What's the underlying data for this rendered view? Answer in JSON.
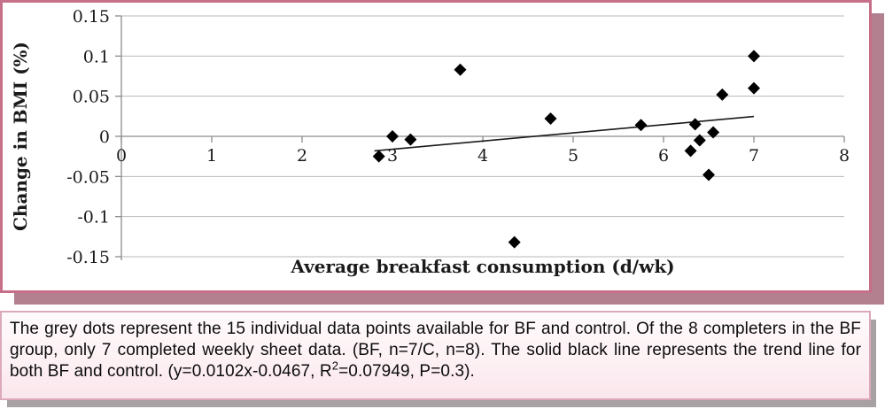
{
  "chart_data": {
    "type": "scatter",
    "title": "",
    "xlabel": "Average breakfast consumption (d/wk)",
    "ylabel": "Change in BMI (%)",
    "xlim": [
      0,
      8
    ],
    "ylim": [
      -0.15,
      0.15
    ],
    "x_ticks": [
      "0",
      "1",
      "2",
      "3",
      "4",
      "5",
      "6",
      "7",
      "8"
    ],
    "x_tick_values": [
      0,
      1,
      2,
      3,
      4,
      5,
      6,
      7,
      8
    ],
    "y_ticks": [
      "0.15",
      "0.1",
      "0.05",
      "0",
      "-0.05",
      "-0.1",
      "-0.15"
    ],
    "y_tick_values": [
      0.15,
      0.1,
      0.05,
      0,
      -0.05,
      -0.1,
      -0.15
    ],
    "grid": "horizontal",
    "legend": "none",
    "marker": "diamond",
    "marker_color": "#000000",
    "gridline_color": "#b9b9b9",
    "axis_color": "#8c8c8c",
    "points": [
      [
        2.85,
        -0.025
      ],
      [
        3.0,
        0.0
      ],
      [
        3.2,
        -0.004
      ],
      [
        3.75,
        0.083
      ],
      [
        4.35,
        -0.132
      ],
      [
        4.75,
        0.022
      ],
      [
        5.75,
        0.014
      ],
      [
        6.3,
        -0.018
      ],
      [
        6.35,
        0.015
      ],
      [
        6.4,
        -0.005
      ],
      [
        6.5,
        -0.048
      ],
      [
        6.55,
        0.005
      ],
      [
        6.65,
        0.052
      ],
      [
        7.0,
        0.06
      ],
      [
        7.0,
        0.1
      ]
    ],
    "trendline": {
      "slope": 0.0102,
      "intercept": -0.0467,
      "x_start": 2.8,
      "x_end": 7.0,
      "color": "#1a1a1a"
    }
  },
  "caption": {
    "part1": "The grey dots represent the 15 individual data points available for BF and control. Of the 8 completers in the BF group, only 7 completed weekly sheet data. (BF, n=7/C, n=8). The solid black line represents the trend line for both BF and control. (y=0.0102x-0.0467, R",
    "sup": "2",
    "part2": "=0.07949, P=0.3)."
  },
  "colors": {
    "chart_border": "#c56f89",
    "chart_shadow": "#b3808f",
    "caption_border": "#dca9bb",
    "caption_shadow": "#a7a1a3"
  }
}
